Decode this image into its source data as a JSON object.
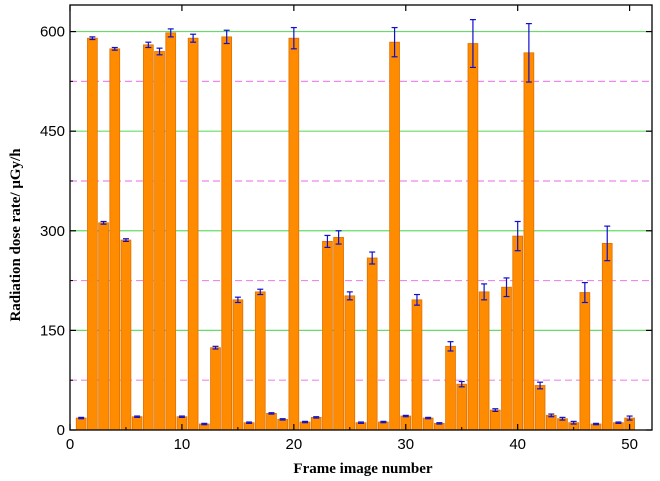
{
  "chart_data": {
    "type": "bar",
    "xlabel": "Frame image number",
    "ylabel": "Radiation dose rate/ μGy/h",
    "xlim": [
      0,
      52
    ],
    "ylim": [
      0,
      640
    ],
    "x_ticks": [
      "0",
      "10",
      "20",
      "30",
      "40",
      "50"
    ],
    "y_ticks": [
      "0",
      "150",
      "300",
      "450",
      "600"
    ],
    "major_grid_values": [
      150,
      300,
      450,
      600
    ],
    "minor_grid_values": [
      75,
      225,
      375,
      525
    ],
    "colors": {
      "bar_fill": "#FF8C00",
      "bar_edge": "#E07000",
      "error_bar": "#1010CC",
      "major_grid": "#66DD66",
      "minor_grid": "#EE88EE",
      "axis": "#000000"
    },
    "x": [
      1,
      2,
      3,
      4,
      5,
      6,
      7,
      8,
      9,
      10,
      11,
      12,
      13,
      14,
      15,
      16,
      17,
      18,
      19,
      20,
      21,
      22,
      23,
      24,
      25,
      26,
      27,
      28,
      29,
      30,
      31,
      32,
      33,
      34,
      35,
      36,
      37,
      38,
      39,
      40,
      41,
      42,
      43,
      44,
      45,
      46,
      47,
      48,
      49,
      50
    ],
    "values": [
      18,
      590,
      312,
      574,
      286,
      20,
      580,
      570,
      598,
      20,
      590,
      9,
      124,
      592,
      196,
      11,
      208,
      25,
      16,
      590,
      12,
      19,
      284,
      290,
      202,
      11,
      259,
      12,
      584,
      21,
      196,
      18,
      10,
      126,
      69,
      582,
      208,
      30,
      215,
      292,
      568,
      67,
      22,
      17,
      11,
      207,
      9,
      281,
      11,
      18
    ],
    "errors": [
      1,
      2,
      2,
      2,
      2,
      1,
      4,
      5,
      6,
      1,
      6,
      1,
      2,
      10,
      4,
      1,
      4,
      1,
      1,
      16,
      1,
      1,
      9,
      10,
      6,
      1,
      9,
      1,
      22,
      1,
      8,
      1,
      1,
      7,
      4,
      36,
      12,
      2,
      14,
      22,
      44,
      5,
      2,
      2,
      2,
      15,
      1,
      26,
      1,
      3
    ]
  }
}
